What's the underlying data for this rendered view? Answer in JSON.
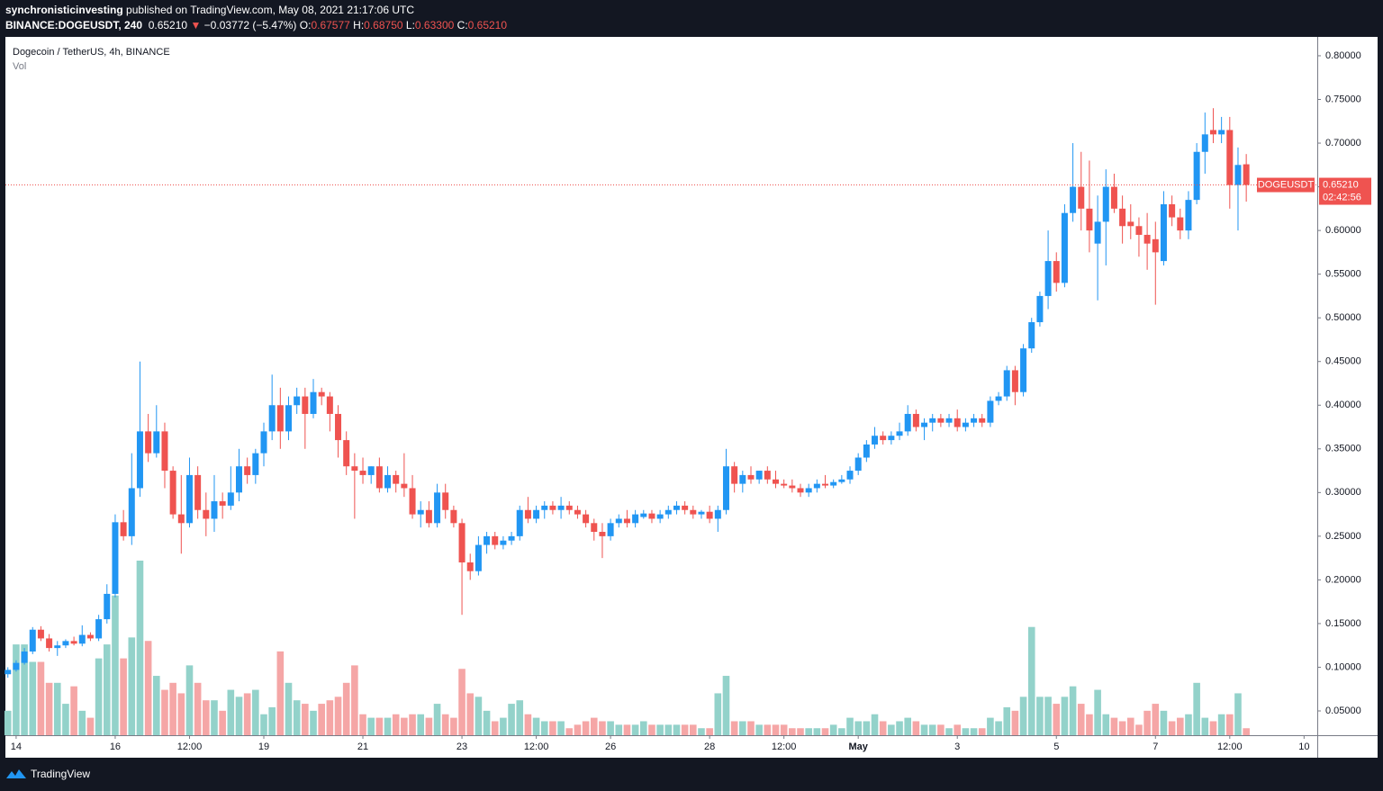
{
  "header": {
    "publisher": "synchronisticinvesting",
    "published": "published on TradingView.com, May 08, 2021 21:17:06 UTC",
    "symbol": "BINANCE:DOGEUSDT, 240",
    "last": "0.65210",
    "arrow": "▼",
    "change": "−0.03772 (−5.47%)",
    "o_label": "O:",
    "o": "0.67577",
    "h_label": "H:",
    "h": "0.68750",
    "l_label": "L:",
    "l": "0.63300",
    "c_label": "C:",
    "c": "0.65210"
  },
  "footer": {
    "brand": "TradingView"
  },
  "chart_data": {
    "type": "candlestick",
    "title": "Dogecoin / TetherUS, 4h, BINANCE",
    "volume_title": "Vol",
    "up_color": "#2196f3",
    "down_color": "#ef5350",
    "volume_up_color": "#93d2ca",
    "volume_down_color": "#f5a6a6",
    "grid": false,
    "xlim": [
      -0.3,
      158.6
    ],
    "ylim": [
      0.0222,
      0.8216
    ],
    "volume_lim": [
      0,
      100
    ],
    "xticks": [
      {
        "value": 1,
        "label": "14"
      },
      {
        "value": 13,
        "label": "16"
      },
      {
        "value": 22,
        "label": "12:00"
      },
      {
        "value": 31,
        "label": "19"
      },
      {
        "value": 43,
        "label": "21"
      },
      {
        "value": 55,
        "label": "23"
      },
      {
        "value": 64,
        "label": "12:00"
      },
      {
        "value": 73,
        "label": "26"
      },
      {
        "value": 85,
        "label": "28"
      },
      {
        "value": 94,
        "label": "12:00"
      },
      {
        "value": 103,
        "label": "May"
      },
      {
        "value": 115,
        "label": "3"
      },
      {
        "value": 127,
        "label": "5"
      },
      {
        "value": 139,
        "label": "7"
      },
      {
        "value": 148,
        "label": "12:00"
      },
      {
        "value": 157,
        "label": "10"
      }
    ],
    "yticks": [
      {
        "value": 0.8,
        "label": "0.80000"
      },
      {
        "value": 0.75,
        "label": "0.75000"
      },
      {
        "value": 0.7,
        "label": "0.70000"
      },
      {
        "value": 0.65,
        "label": "0.65000"
      },
      {
        "value": 0.6,
        "label": "0.60000"
      },
      {
        "value": 0.55,
        "label": "0.55000"
      },
      {
        "value": 0.5,
        "label": "0.50000"
      },
      {
        "value": 0.45,
        "label": "0.45000"
      },
      {
        "value": 0.4,
        "label": "0.40000"
      },
      {
        "value": 0.35,
        "label": "0.35000"
      },
      {
        "value": 0.3,
        "label": "0.30000"
      },
      {
        "value": 0.25,
        "label": "0.25000"
      },
      {
        "value": 0.2,
        "label": "0.20000"
      },
      {
        "value": 0.15,
        "label": "0.15000"
      },
      {
        "value": 0.1,
        "label": "0.10000"
      },
      {
        "value": 0.05,
        "label": "0.05000"
      }
    ],
    "last_price": {
      "name": "DOGEUSDT",
      "value": 0.6521,
      "value_label": "0.65210",
      "countdown": "02:42:56"
    },
    "candles": [
      [
        0.092,
        0.1,
        0.088,
        0.097
      ],
      [
        0.097,
        0.108,
        0.095,
        0.105
      ],
      [
        0.105,
        0.122,
        0.103,
        0.118
      ],
      [
        0.118,
        0.146,
        0.115,
        0.143
      ],
      [
        0.143,
        0.147,
        0.13,
        0.133
      ],
      [
        0.133,
        0.138,
        0.118,
        0.122
      ],
      [
        0.122,
        0.13,
        0.113,
        0.125
      ],
      [
        0.125,
        0.132,
        0.122,
        0.13
      ],
      [
        0.13,
        0.135,
        0.125,
        0.127
      ],
      [
        0.127,
        0.148,
        0.124,
        0.137
      ],
      [
        0.137,
        0.14,
        0.13,
        0.133
      ],
      [
        0.133,
        0.16,
        0.13,
        0.155
      ],
      [
        0.155,
        0.195,
        0.15,
        0.184
      ],
      [
        0.184,
        0.275,
        0.18,
        0.266
      ],
      [
        0.266,
        0.28,
        0.245,
        0.25
      ],
      [
        0.25,
        0.345,
        0.24,
        0.305
      ],
      [
        0.305,
        0.45,
        0.295,
        0.37
      ],
      [
        0.37,
        0.39,
        0.335,
        0.345
      ],
      [
        0.345,
        0.4,
        0.34,
        0.37
      ],
      [
        0.37,
        0.38,
        0.305,
        0.325
      ],
      [
        0.325,
        0.33,
        0.27,
        0.275
      ],
      [
        0.275,
        0.32,
        0.23,
        0.265
      ],
      [
        0.265,
        0.34,
        0.26,
        0.32
      ],
      [
        0.32,
        0.33,
        0.27,
        0.28
      ],
      [
        0.28,
        0.3,
        0.25,
        0.27
      ],
      [
        0.27,
        0.32,
        0.255,
        0.29
      ],
      [
        0.29,
        0.3,
        0.27,
        0.285
      ],
      [
        0.285,
        0.33,
        0.28,
        0.3
      ],
      [
        0.3,
        0.35,
        0.29,
        0.33
      ],
      [
        0.33,
        0.34,
        0.31,
        0.32
      ],
      [
        0.32,
        0.35,
        0.31,
        0.345
      ],
      [
        0.345,
        0.38,
        0.33,
        0.37
      ],
      [
        0.37,
        0.435,
        0.36,
        0.4
      ],
      [
        0.4,
        0.42,
        0.35,
        0.37
      ],
      [
        0.37,
        0.41,
        0.36,
        0.4
      ],
      [
        0.4,
        0.42,
        0.39,
        0.41
      ],
      [
        0.41,
        0.42,
        0.35,
        0.39
      ],
      [
        0.39,
        0.43,
        0.385,
        0.415
      ],
      [
        0.415,
        0.42,
        0.4,
        0.41
      ],
      [
        0.41,
        0.415,
        0.37,
        0.39
      ],
      [
        0.39,
        0.4,
        0.34,
        0.36
      ],
      [
        0.36,
        0.37,
        0.32,
        0.33
      ],
      [
        0.33,
        0.345,
        0.27,
        0.325
      ],
      [
        0.325,
        0.34,
        0.31,
        0.32
      ],
      [
        0.32,
        0.33,
        0.31,
        0.33
      ],
      [
        0.33,
        0.34,
        0.3,
        0.305
      ],
      [
        0.305,
        0.33,
        0.3,
        0.32
      ],
      [
        0.32,
        0.325,
        0.3,
        0.31
      ],
      [
        0.31,
        0.345,
        0.295,
        0.305
      ],
      [
        0.305,
        0.32,
        0.27,
        0.275
      ],
      [
        0.275,
        0.29,
        0.26,
        0.28
      ],
      [
        0.28,
        0.29,
        0.26,
        0.265
      ],
      [
        0.265,
        0.31,
        0.26,
        0.3
      ],
      [
        0.3,
        0.31,
        0.27,
        0.28
      ],
      [
        0.28,
        0.285,
        0.26,
        0.265
      ],
      [
        0.265,
        0.27,
        0.16,
        0.22
      ],
      [
        0.22,
        0.23,
        0.2,
        0.21
      ],
      [
        0.21,
        0.25,
        0.205,
        0.24
      ],
      [
        0.24,
        0.255,
        0.23,
        0.25
      ],
      [
        0.25,
        0.255,
        0.235,
        0.24
      ],
      [
        0.24,
        0.25,
        0.235,
        0.245
      ],
      [
        0.245,
        0.255,
        0.24,
        0.25
      ],
      [
        0.25,
        0.285,
        0.245,
        0.28
      ],
      [
        0.28,
        0.295,
        0.265,
        0.27
      ],
      [
        0.27,
        0.285,
        0.265,
        0.28
      ],
      [
        0.28,
        0.29,
        0.27,
        0.285
      ],
      [
        0.285,
        0.29,
        0.275,
        0.28
      ],
      [
        0.28,
        0.295,
        0.27,
        0.285
      ],
      [
        0.285,
        0.29,
        0.275,
        0.28
      ],
      [
        0.28,
        0.285,
        0.27,
        0.275
      ],
      [
        0.275,
        0.28,
        0.26,
        0.265
      ],
      [
        0.265,
        0.27,
        0.245,
        0.255
      ],
      [
        0.255,
        0.265,
        0.225,
        0.25
      ],
      [
        0.25,
        0.27,
        0.245,
        0.265
      ],
      [
        0.265,
        0.275,
        0.26,
        0.27
      ],
      [
        0.27,
        0.28,
        0.26,
        0.265
      ],
      [
        0.265,
        0.28,
        0.26,
        0.275
      ],
      [
        0.272,
        0.28,
        0.27,
        0.276
      ],
      [
        0.276,
        0.28,
        0.265,
        0.27
      ],
      [
        0.27,
        0.28,
        0.265,
        0.275
      ],
      [
        0.275,
        0.285,
        0.27,
        0.28
      ],
      [
        0.28,
        0.29,
        0.275,
        0.285
      ],
      [
        0.285,
        0.29,
        0.275,
        0.28
      ],
      [
        0.28,
        0.285,
        0.27,
        0.275
      ],
      [
        0.275,
        0.28,
        0.27,
        0.278
      ],
      [
        0.278,
        0.285,
        0.265,
        0.27
      ],
      [
        0.27,
        0.285,
        0.255,
        0.28
      ],
      [
        0.28,
        0.35,
        0.275,
        0.33
      ],
      [
        0.33,
        0.335,
        0.3,
        0.31
      ],
      [
        0.31,
        0.325,
        0.3,
        0.32
      ],
      [
        0.32,
        0.33,
        0.31,
        0.315
      ],
      [
        0.315,
        0.325,
        0.31,
        0.325
      ],
      [
        0.325,
        0.33,
        0.31,
        0.315
      ],
      [
        0.315,
        0.325,
        0.305,
        0.31
      ],
      [
        0.31,
        0.315,
        0.305,
        0.308
      ],
      [
        0.308,
        0.315,
        0.3,
        0.305
      ],
      [
        0.305,
        0.31,
        0.295,
        0.3
      ],
      [
        0.3,
        0.31,
        0.295,
        0.305
      ],
      [
        0.305,
        0.315,
        0.3,
        0.31
      ],
      [
        0.31,
        0.32,
        0.305,
        0.308
      ],
      [
        0.308,
        0.315,
        0.305,
        0.312
      ],
      [
        0.312,
        0.32,
        0.31,
        0.315
      ],
      [
        0.315,
        0.33,
        0.31,
        0.325
      ],
      [
        0.325,
        0.345,
        0.32,
        0.34
      ],
      [
        0.34,
        0.36,
        0.335,
        0.355
      ],
      [
        0.355,
        0.375,
        0.35,
        0.365
      ],
      [
        0.365,
        0.37,
        0.355,
        0.36
      ],
      [
        0.36,
        0.37,
        0.355,
        0.365
      ],
      [
        0.365,
        0.38,
        0.36,
        0.37
      ],
      [
        0.37,
        0.4,
        0.365,
        0.39
      ],
      [
        0.39,
        0.395,
        0.37,
        0.375
      ],
      [
        0.375,
        0.385,
        0.36,
        0.38
      ],
      [
        0.38,
        0.39,
        0.37,
        0.385
      ],
      [
        0.385,
        0.39,
        0.375,
        0.38
      ],
      [
        0.38,
        0.39,
        0.375,
        0.385
      ],
      [
        0.385,
        0.395,
        0.37,
        0.375
      ],
      [
        0.375,
        0.385,
        0.37,
        0.38
      ],
      [
        0.38,
        0.39,
        0.375,
        0.385
      ],
      [
        0.385,
        0.39,
        0.375,
        0.38
      ],
      [
        0.38,
        0.41,
        0.375,
        0.405
      ],
      [
        0.405,
        0.415,
        0.4,
        0.41
      ],
      [
        0.41,
        0.445,
        0.405,
        0.44
      ],
      [
        0.44,
        0.445,
        0.4,
        0.415
      ],
      [
        0.415,
        0.47,
        0.41,
        0.465
      ],
      [
        0.465,
        0.5,
        0.46,
        0.495
      ],
      [
        0.495,
        0.53,
        0.49,
        0.525
      ],
      [
        0.525,
        0.6,
        0.51,
        0.565
      ],
      [
        0.565,
        0.575,
        0.53,
        0.54
      ],
      [
        0.54,
        0.63,
        0.535,
        0.62
      ],
      [
        0.62,
        0.7,
        0.61,
        0.65
      ],
      [
        0.65,
        0.69,
        0.6,
        0.625
      ],
      [
        0.625,
        0.68,
        0.575,
        0.6
      ],
      [
        0.585,
        0.64,
        0.52,
        0.61
      ],
      [
        0.61,
        0.67,
        0.56,
        0.65
      ],
      [
        0.65,
        0.665,
        0.62,
        0.625
      ],
      [
        0.625,
        0.64,
        0.585,
        0.605
      ],
      [
        0.61,
        0.63,
        0.59,
        0.605
      ],
      [
        0.605,
        0.615,
        0.57,
        0.595
      ],
      [
        0.595,
        0.62,
        0.555,
        0.585
      ],
      [
        0.59,
        0.61,
        0.515,
        0.575
      ],
      [
        0.565,
        0.645,
        0.56,
        0.63
      ],
      [
        0.63,
        0.64,
        0.605,
        0.615
      ],
      [
        0.615,
        0.625,
        0.59,
        0.6
      ],
      [
        0.6,
        0.645,
        0.59,
        0.635
      ],
      [
        0.635,
        0.7,
        0.63,
        0.69
      ],
      [
        0.69,
        0.735,
        0.665,
        0.71
      ],
      [
        0.715,
        0.74,
        0.7,
        0.71
      ],
      [
        0.71,
        0.73,
        0.7,
        0.715
      ],
      [
        0.715,
        0.73,
        0.625,
        0.652
      ],
      [
        0.652,
        0.695,
        0.6,
        0.675
      ],
      [
        0.67577,
        0.6875,
        0.633,
        0.6521
      ]
    ],
    "volume": [
      7,
      26,
      26,
      21,
      21,
      15,
      15,
      9,
      14,
      7,
      5,
      22,
      26,
      40,
      22,
      28,
      50,
      27,
      17,
      13,
      15,
      12,
      20,
      15,
      10,
      10,
      7,
      13,
      11,
      12,
      13,
      6,
      8,
      24,
      15,
      10,
      9,
      7,
      9,
      10,
      11,
      15,
      20,
      6,
      5,
      5,
      5,
      6,
      5,
      6,
      6,
      5,
      9,
      6,
      5,
      19,
      12,
      11,
      7,
      4,
      5,
      9,
      10,
      6,
      5,
      4,
      4,
      4,
      2,
      3,
      4,
      5,
      4,
      4,
      3,
      3,
      3,
      4,
      3,
      3,
      3,
      3,
      3,
      3,
      2,
      2,
      12,
      17,
      4,
      4,
      4,
      3,
      3,
      3,
      3,
      2,
      2,
      2,
      2,
      2,
      3,
      2,
      5,
      4,
      4,
      6,
      4,
      3,
      4,
      5,
      4,
      3,
      3,
      3,
      2,
      3,
      2,
      2,
      2,
      5,
      4,
      8,
      7,
      11,
      31,
      11,
      11,
      9,
      11,
      14,
      9,
      6,
      13,
      6,
      5,
      4,
      5,
      3,
      7,
      9,
      7,
      4,
      5,
      6,
      15,
      5,
      4,
      6,
      6,
      12,
      2
    ]
  }
}
